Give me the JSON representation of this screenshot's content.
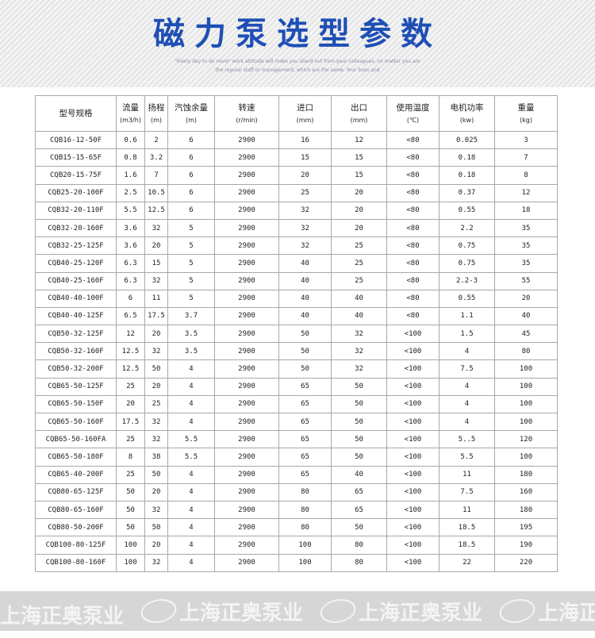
{
  "header": {
    "title": "磁力泵选型参数",
    "subtitle_line1": "\"Every day to do more\" work attitude will make you stand out from your colleagues, no matter you are",
    "subtitle_line2": "the regular staff or management, which are the same. Your boss and"
  },
  "table": {
    "headers": [
      [
        "型号规格",
        ""
      ],
      [
        "流量",
        "(m3/h)"
      ],
      [
        "扬程",
        "(m)"
      ],
      [
        "汽蚀余量",
        "(m)"
      ],
      [
        "转速",
        "(r/min)"
      ],
      [
        "进口",
        "(mm)"
      ],
      [
        "出口",
        "(mm)"
      ],
      [
        "使用温度",
        "(℃)"
      ],
      [
        "电机功率",
        "(kw)"
      ],
      [
        "重量",
        "(kg)"
      ]
    ],
    "rows": [
      [
        "CQB16-12-50F",
        "0.6",
        "2",
        "6",
        "2900",
        "16",
        "12",
        "<80",
        "0.025",
        "3"
      ],
      [
        "CQB15-15-65F",
        "0.8",
        "3.2",
        "6",
        "2900",
        "15",
        "15",
        "<80",
        "0.18",
        "7"
      ],
      [
        "CQB20-15-75F",
        "1.6",
        "7",
        "6",
        "2900",
        "20",
        "15",
        "<80",
        "0.18",
        "8"
      ],
      [
        "CQB25-20-100F",
        "2.5",
        "10.5",
        "6",
        "2900",
        "25",
        "20",
        "<80",
        "0.37",
        "12"
      ],
      [
        "CQB32-20-110F",
        "5.5",
        "12.5",
        "6",
        "2900",
        "32",
        "20",
        "<80",
        "0.55",
        "18"
      ],
      [
        "CQB32-20-160F",
        "3.6",
        "32",
        "5",
        "2900",
        "32",
        "20",
        "<80",
        "2.2",
        "35"
      ],
      [
        "CQB32-25-125F",
        "3.6",
        "20",
        "5",
        "2900",
        "32",
        "25",
        "<80",
        "0.75",
        "35"
      ],
      [
        "CQB40-25-120F",
        "6.3",
        "15",
        "5",
        "2900",
        "40",
        "25",
        "<80",
        "0.75",
        "35"
      ],
      [
        "CQB40-25-160F",
        "6.3",
        "32",
        "5",
        "2900",
        "40",
        "25",
        "<80",
        "2.2-3",
        "55"
      ],
      [
        "CQB40-40-100F",
        "6",
        "11",
        "5",
        "2900",
        "40",
        "40",
        "<80",
        "0.55",
        "20"
      ],
      [
        "CQB40-40-125F",
        "6.5",
        "17.5",
        "3.7",
        "2900",
        "40",
        "40",
        "<80",
        "1.1",
        "40"
      ],
      [
        "CQB50-32-125F",
        "12",
        "20",
        "3.5",
        "2900",
        "50",
        "32",
        "<100",
        "1.5",
        "45"
      ],
      [
        "CQB50-32-160F",
        "12.5",
        "32",
        "3.5",
        "2900",
        "50",
        "32",
        "<100",
        "4",
        "80"
      ],
      [
        "CQB50-32-200F",
        "12.5",
        "50",
        "4",
        "2900",
        "50",
        "32",
        "<100",
        "7.5",
        "100"
      ],
      [
        "CQB65-50-125F",
        "25",
        "20",
        "4",
        "2900",
        "65",
        "50",
        "<100",
        "4",
        "100"
      ],
      [
        "CQB65-50-150F",
        "20",
        "25",
        "4",
        "2900",
        "65",
        "50",
        "<100",
        "4",
        "100"
      ],
      [
        "CQB65-50-160F",
        "17.5",
        "32",
        "4",
        "2900",
        "65",
        "50",
        "<100",
        "4",
        "100"
      ],
      [
        "CQB65-50-160FA",
        "25",
        "32",
        "5.5",
        "2900",
        "65",
        "50",
        "<100",
        "5..5",
        "120"
      ],
      [
        "CQB65-50-180F",
        "8",
        "38",
        "5.5",
        "2900",
        "65",
        "50",
        "<100",
        "5.5",
        "100"
      ],
      [
        "CQB65-40-200F",
        "25",
        "50",
        "4",
        "2900",
        "65",
        "40",
        "<100",
        "11",
        "180"
      ],
      [
        "CQB80-65-125F",
        "50",
        "20",
        "4",
        "2900",
        "80",
        "65",
        "<100",
        "7.5",
        "160"
      ],
      [
        "CQB80-65-160F",
        "50",
        "32",
        "4",
        "2900",
        "80",
        "65",
        "<100",
        "11",
        "180"
      ],
      [
        "CQB80-50-200F",
        "50",
        "50",
        "4",
        "2900",
        "80",
        "50",
        "<100",
        "18.5",
        "195"
      ],
      [
        "CQB100-80-125F",
        "100",
        "20",
        "4",
        "2900",
        "100",
        "80",
        "<100",
        "18.5",
        "190"
      ],
      [
        "CQB100-80-160F",
        "100",
        "32",
        "4",
        "2900",
        "100",
        "80",
        "<100",
        "22",
        "220"
      ]
    ]
  },
  "footer": {
    "watermark": "上海正奥泵业"
  },
  "colors": {
    "title": "#1f4fb5",
    "footer_band": "#d6d6d6",
    "grid": "#a8a8a8"
  }
}
